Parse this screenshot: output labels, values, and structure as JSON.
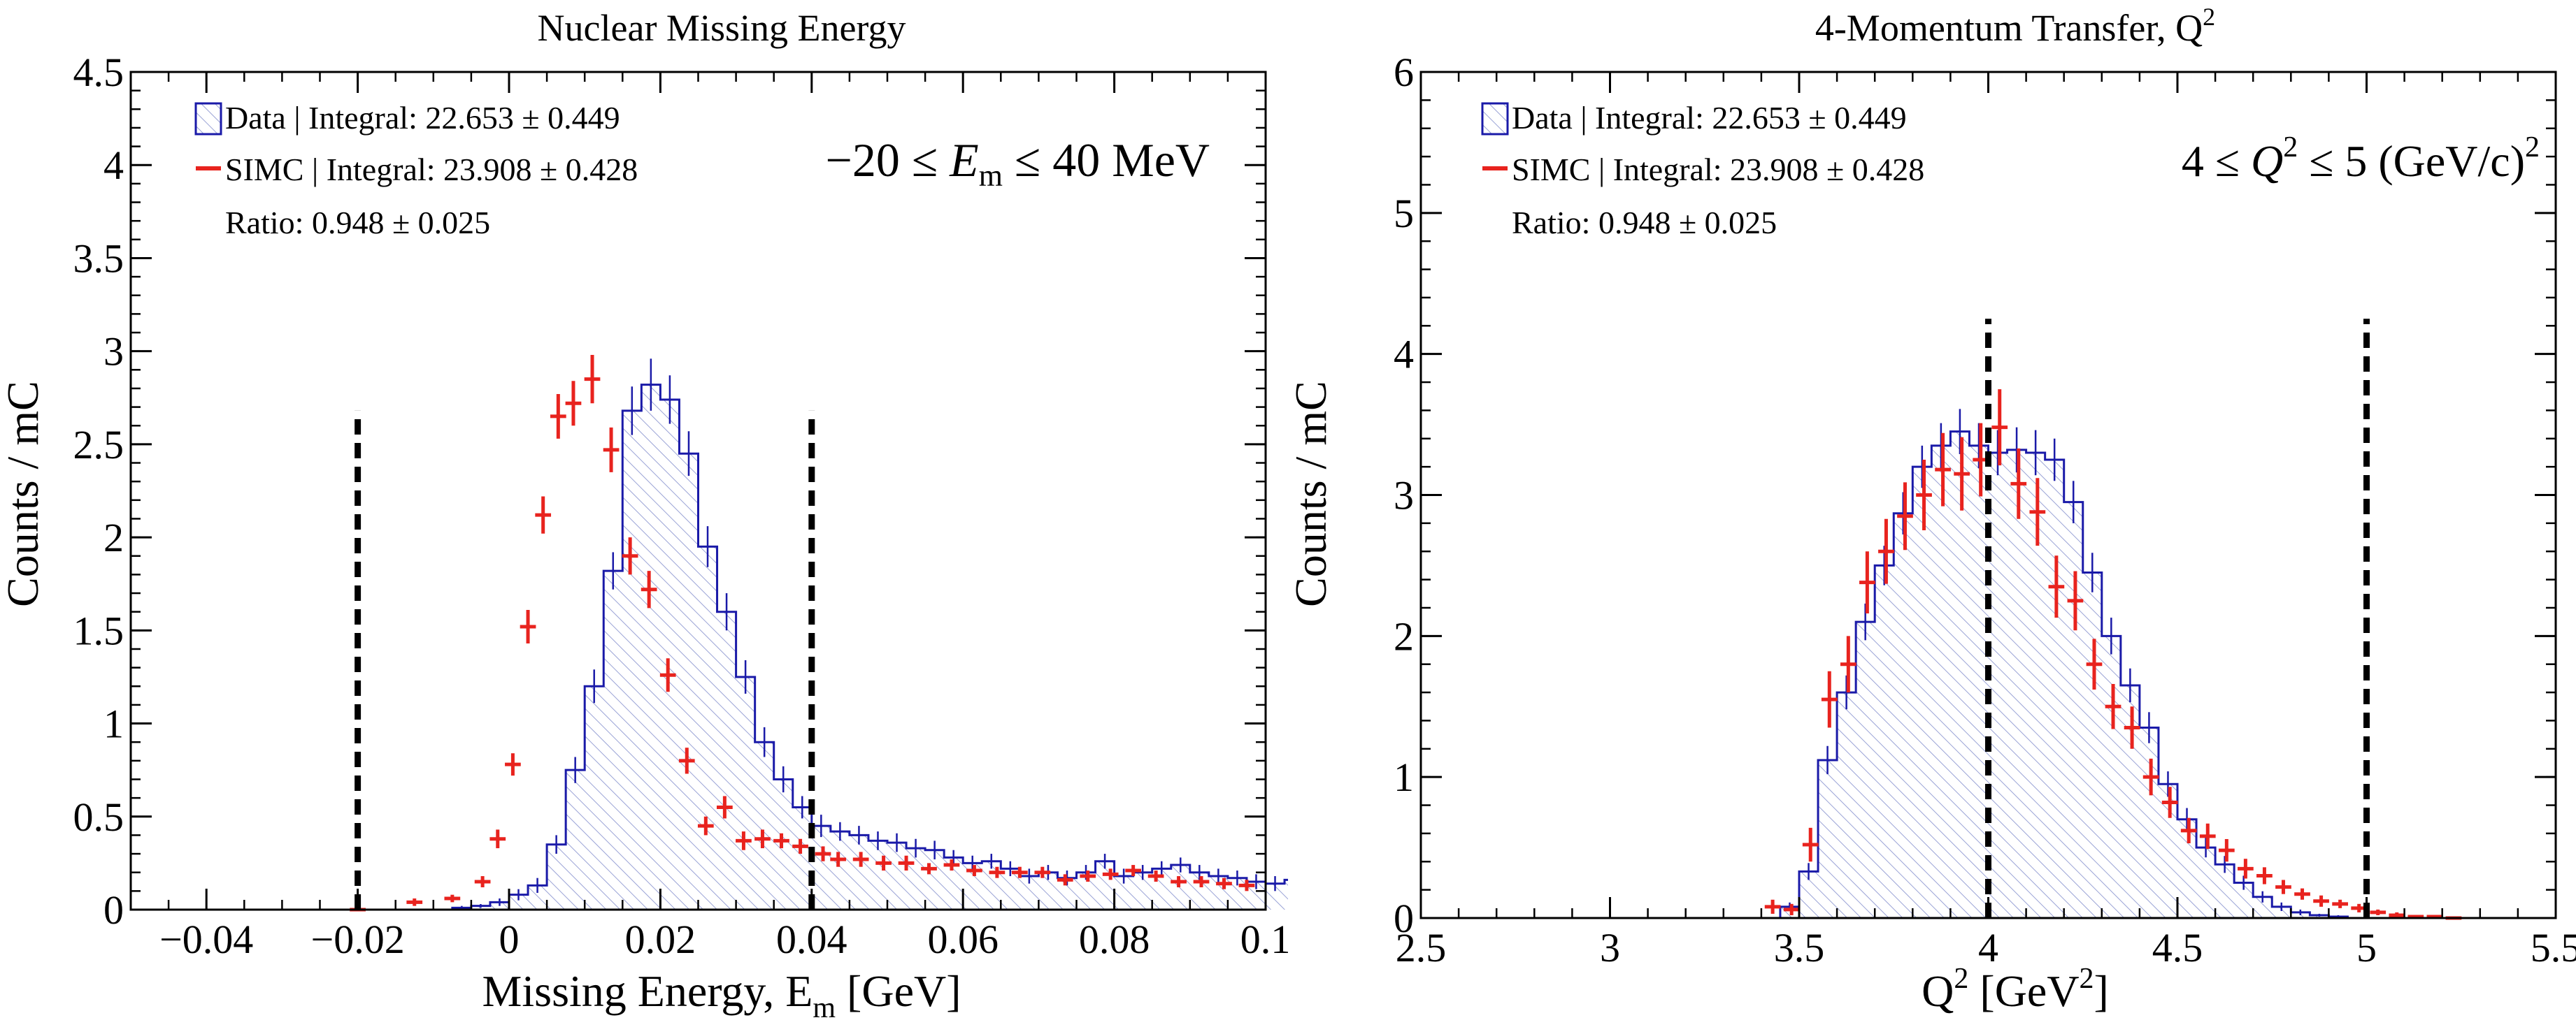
{
  "chart_data": [
    {
      "type": "histogram",
      "title": "Nuclear Missing Energy",
      "xlabel_main": "Missing Energy, E",
      "xlabel_sub": "m",
      "xlabel_tail": " [GeV]",
      "ylabel": "Counts / mC",
      "xlim": [
        -0.05,
        0.1
      ],
      "ylim": [
        0,
        4.5
      ],
      "xticks": [
        -0.04,
        -0.02,
        0,
        0.02,
        0.04,
        0.06,
        0.08,
        0.1
      ],
      "xtick_labels": [
        "−0.04",
        "−0.02",
        "0",
        "0.02",
        "0.04",
        "0.06",
        "0.08",
        "0.1"
      ],
      "yticks": [
        0,
        0.5,
        1,
        1.5,
        2,
        2.5,
        3,
        3.5,
        4,
        4.5
      ],
      "ytick_labels": [
        "0",
        "0.5",
        "1",
        "1.5",
        "2",
        "2.5",
        "3",
        "3.5",
        "4",
        "4.5"
      ],
      "xminor_step": 0.005,
      "yminor_step": 0.1,
      "cuts": [
        -0.02,
        0.04
      ],
      "cut_top": 2.68,
      "legend": {
        "data": "Data | Integral: 22.653 ± 0.449",
        "simc": "SIMC | Integral: 23.908 ± 0.428",
        "ratio": "Ratio: 0.948 ± 0.025"
      },
      "annotation": {
        "prefix": "−20 ≤ ",
        "var": "E",
        "sub": "m",
        "sup": "",
        "suffix": " ≤ 40 MeV"
      },
      "data_bin_edges_start": -0.05,
      "data_bin_width": 0.0025,
      "data_values": [
        0,
        0,
        0,
        0,
        0,
        0,
        0,
        0,
        0,
        0,
        0,
        0,
        0,
        0,
        0,
        0,
        0,
        0.01,
        0.02,
        0.04,
        0.08,
        0.13,
        0.35,
        0.75,
        1.2,
        1.82,
        2.68,
        2.82,
        2.74,
        2.45,
        1.95,
        1.6,
        1.25,
        0.9,
        0.7,
        0.55,
        0.45,
        0.42,
        0.4,
        0.37,
        0.36,
        0.33,
        0.32,
        0.28,
        0.25,
        0.26,
        0.22,
        0.18,
        0.2,
        0.17,
        0.2,
        0.26,
        0.18,
        0.2,
        0.22,
        0.24,
        0.2,
        0.18,
        0.17,
        0.15,
        0.14,
        0.16,
        0.2,
        0.18,
        0.12,
        0.14,
        0.14,
        0.16
      ],
      "data_errors": [
        0,
        0,
        0,
        0,
        0,
        0,
        0,
        0,
        0,
        0,
        0,
        0,
        0,
        0,
        0,
        0,
        0,
        0.01,
        0.01,
        0.02,
        0.03,
        0.04,
        0.05,
        0.07,
        0.09,
        0.1,
        0.13,
        0.14,
        0.13,
        0.12,
        0.11,
        0.1,
        0.09,
        0.08,
        0.07,
        0.06,
        0.06,
        0.05,
        0.05,
        0.05,
        0.05,
        0.05,
        0.05,
        0.04,
        0.04,
        0.04,
        0.04,
        0.04,
        0.04,
        0.04,
        0.04,
        0.04,
        0.04,
        0.04,
        0.04,
        0.04,
        0.04,
        0.04,
        0.04,
        0.04,
        0.04,
        0.04,
        0.04,
        0.04,
        0.04,
        0.04,
        0.04,
        0.04
      ],
      "simc_points": [
        {
          "x": -0.02,
          "y": 0.0,
          "e": 0.01
        },
        {
          "x": -0.0125,
          "y": 0.04,
          "e": 0.02
        },
        {
          "x": -0.0075,
          "y": 0.06,
          "e": 0.02
        },
        {
          "x": -0.0035,
          "y": 0.15,
          "e": 0.03
        },
        {
          "x": -0.0015,
          "y": 0.38,
          "e": 0.05
        },
        {
          "x": 0.0005,
          "y": 0.78,
          "e": 0.06
        },
        {
          "x": 0.0025,
          "y": 1.52,
          "e": 0.09
        },
        {
          "x": 0.0045,
          "y": 2.12,
          "e": 0.1
        },
        {
          "x": 0.0065,
          "y": 2.65,
          "e": 0.12
        },
        {
          "x": 0.0085,
          "y": 2.72,
          "e": 0.12
        },
        {
          "x": 0.011,
          "y": 2.85,
          "e": 0.13
        },
        {
          "x": 0.0135,
          "y": 2.47,
          "e": 0.12
        },
        {
          "x": 0.016,
          "y": 1.9,
          "e": 0.1
        },
        {
          "x": 0.0185,
          "y": 1.72,
          "e": 0.1
        },
        {
          "x": 0.021,
          "y": 1.26,
          "e": 0.09
        },
        {
          "x": 0.0235,
          "y": 0.8,
          "e": 0.07
        },
        {
          "x": 0.026,
          "y": 0.45,
          "e": 0.05
        },
        {
          "x": 0.0285,
          "y": 0.55,
          "e": 0.06
        },
        {
          "x": 0.031,
          "y": 0.37,
          "e": 0.05
        },
        {
          "x": 0.0335,
          "y": 0.38,
          "e": 0.05
        },
        {
          "x": 0.036,
          "y": 0.37,
          "e": 0.04
        },
        {
          "x": 0.0385,
          "y": 0.34,
          "e": 0.04
        },
        {
          "x": 0.0415,
          "y": 0.3,
          "e": 0.04
        },
        {
          "x": 0.0435,
          "y": 0.27,
          "e": 0.04
        },
        {
          "x": 0.0465,
          "y": 0.27,
          "e": 0.04
        },
        {
          "x": 0.0495,
          "y": 0.25,
          "e": 0.04
        },
        {
          "x": 0.0525,
          "y": 0.25,
          "e": 0.04
        },
        {
          "x": 0.0555,
          "y": 0.22,
          "e": 0.03
        },
        {
          "x": 0.0585,
          "y": 0.24,
          "e": 0.03
        },
        {
          "x": 0.0615,
          "y": 0.21,
          "e": 0.03
        },
        {
          "x": 0.0645,
          "y": 0.2,
          "e": 0.03
        },
        {
          "x": 0.0675,
          "y": 0.2,
          "e": 0.03
        },
        {
          "x": 0.0705,
          "y": 0.2,
          "e": 0.03
        },
        {
          "x": 0.0735,
          "y": 0.16,
          "e": 0.03
        },
        {
          "x": 0.0765,
          "y": 0.18,
          "e": 0.03
        },
        {
          "x": 0.0795,
          "y": 0.19,
          "e": 0.03
        },
        {
          "x": 0.0825,
          "y": 0.21,
          "e": 0.03
        },
        {
          "x": 0.0855,
          "y": 0.18,
          "e": 0.03
        },
        {
          "x": 0.0885,
          "y": 0.15,
          "e": 0.03
        },
        {
          "x": 0.0915,
          "y": 0.15,
          "e": 0.03
        },
        {
          "x": 0.0945,
          "y": 0.14,
          "e": 0.03
        },
        {
          "x": 0.0975,
          "y": 0.13,
          "e": 0.03
        }
      ]
    },
    {
      "type": "histogram",
      "title": "4-Momentum Transfer, Q",
      "title_sup": "2",
      "xlabel_main": "Q",
      "xlabel_sup": "2",
      "xlabel_mid": " [GeV",
      "xlabel_sup2": "2",
      "xlabel_tail": "]",
      "ylabel": "Counts / mC",
      "xlim": [
        2.5,
        5.5
      ],
      "ylim": [
        0,
        6
      ],
      "xticks": [
        2.5,
        3,
        3.5,
        4,
        4.5,
        5,
        5.5
      ],
      "xtick_labels": [
        "2.5",
        "3",
        "3.5",
        "4",
        "4.5",
        "5",
        "5.5"
      ],
      "yticks": [
        0,
        1,
        2,
        3,
        4,
        5,
        6
      ],
      "ytick_labels": [
        "0",
        "1",
        "2",
        "3",
        "4",
        "5",
        "6"
      ],
      "xminor_step": 0.1,
      "yminor_step": 0.2,
      "cuts": [
        4,
        5
      ],
      "cut_top": 4.25,
      "legend": {
        "data": "Data | Integral: 22.653 ± 0.449",
        "simc": "SIMC | Integral: 23.908 ± 0.428",
        "ratio": "Ratio: 0.948 ± 0.025"
      },
      "annotation": {
        "prefix": "4 ≤ ",
        "var": "Q",
        "sub": "",
        "sup": "2",
        "suffix": " ≤ 5 (GeV/c)",
        "suffix_sup": "2"
      },
      "data_bin_edges_start": 2.5,
      "data_bin_width": 0.05,
      "data_values": [
        0,
        0,
        0,
        0,
        0,
        0,
        0,
        0,
        0,
        0,
        0,
        0,
        0,
        0,
        0,
        0,
        0,
        0,
        0,
        0.08,
        0.33,
        1.12,
        1.6,
        2.1,
        2.5,
        2.87,
        3.2,
        3.35,
        3.45,
        3.35,
        3.3,
        3.32,
        3.3,
        3.25,
        2.95,
        2.45,
        2.0,
        1.65,
        1.35,
        0.95,
        0.7,
        0.5,
        0.38,
        0.25,
        0.15,
        0.08,
        0.04,
        0.02,
        0.01,
        0,
        0,
        0,
        0,
        0,
        0,
        0,
        0,
        0,
        0,
        0
      ],
      "data_errors": [
        0,
        0,
        0,
        0,
        0,
        0,
        0,
        0,
        0,
        0,
        0,
        0,
        0,
        0,
        0,
        0,
        0,
        0,
        0,
        0.03,
        0.06,
        0.1,
        0.12,
        0.13,
        0.14,
        0.15,
        0.15,
        0.16,
        0.16,
        0.16,
        0.16,
        0.16,
        0.16,
        0.15,
        0.15,
        0.14,
        0.13,
        0.12,
        0.11,
        0.09,
        0.08,
        0.07,
        0.06,
        0.05,
        0.04,
        0.03,
        0.02,
        0.01,
        0.01,
        0,
        0,
        0,
        0,
        0,
        0,
        0,
        0,
        0,
        0,
        0
      ],
      "simc_points": [
        {
          "x": 3.43,
          "y": 0.08,
          "e": 0.05
        },
        {
          "x": 3.48,
          "y": 0.06,
          "e": 0.04
        },
        {
          "x": 3.53,
          "y": 0.52,
          "e": 0.12
        },
        {
          "x": 3.58,
          "y": 1.55,
          "e": 0.2
        },
        {
          "x": 3.63,
          "y": 1.8,
          "e": 0.2
        },
        {
          "x": 3.68,
          "y": 2.38,
          "e": 0.22
        },
        {
          "x": 3.73,
          "y": 2.6,
          "e": 0.23
        },
        {
          "x": 3.78,
          "y": 2.85,
          "e": 0.24
        },
        {
          "x": 3.83,
          "y": 3.0,
          "e": 0.25
        },
        {
          "x": 3.88,
          "y": 3.18,
          "e": 0.26
        },
        {
          "x": 3.93,
          "y": 3.15,
          "e": 0.26
        },
        {
          "x": 3.98,
          "y": 3.25,
          "e": 0.26
        },
        {
          "x": 4.03,
          "y": 3.48,
          "e": 0.27
        },
        {
          "x": 4.08,
          "y": 3.08,
          "e": 0.25
        },
        {
          "x": 4.13,
          "y": 2.88,
          "e": 0.24
        },
        {
          "x": 4.18,
          "y": 2.35,
          "e": 0.22
        },
        {
          "x": 4.23,
          "y": 2.25,
          "e": 0.21
        },
        {
          "x": 4.28,
          "y": 1.8,
          "e": 0.18
        },
        {
          "x": 4.33,
          "y": 1.5,
          "e": 0.16
        },
        {
          "x": 4.38,
          "y": 1.35,
          "e": 0.15
        },
        {
          "x": 4.43,
          "y": 1.0,
          "e": 0.13
        },
        {
          "x": 4.48,
          "y": 0.82,
          "e": 0.11
        },
        {
          "x": 4.53,
          "y": 0.62,
          "e": 0.09
        },
        {
          "x": 4.58,
          "y": 0.58,
          "e": 0.09
        },
        {
          "x": 4.63,
          "y": 0.48,
          "e": 0.08
        },
        {
          "x": 4.68,
          "y": 0.35,
          "e": 0.07
        },
        {
          "x": 4.73,
          "y": 0.3,
          "e": 0.06
        },
        {
          "x": 4.78,
          "y": 0.22,
          "e": 0.05
        },
        {
          "x": 4.83,
          "y": 0.17,
          "e": 0.04
        },
        {
          "x": 4.88,
          "y": 0.12,
          "e": 0.04
        },
        {
          "x": 4.93,
          "y": 0.1,
          "e": 0.03
        },
        {
          "x": 4.98,
          "y": 0.07,
          "e": 0.03
        },
        {
          "x": 5.03,
          "y": 0.04,
          "e": 0.02
        },
        {
          "x": 5.08,
          "y": 0.02,
          "e": 0.02
        },
        {
          "x": 5.13,
          "y": 0.01,
          "e": 0.01
        },
        {
          "x": 5.18,
          "y": 0.01,
          "e": 0.01
        },
        {
          "x": 5.23,
          "y": 0.0,
          "e": 0.01
        }
      ]
    }
  ],
  "colors": {
    "data": "#1a1aa8",
    "data_fill": "#9aa3d6",
    "simc": "#e8231e",
    "cut": "#000000",
    "axis": "#000000"
  }
}
